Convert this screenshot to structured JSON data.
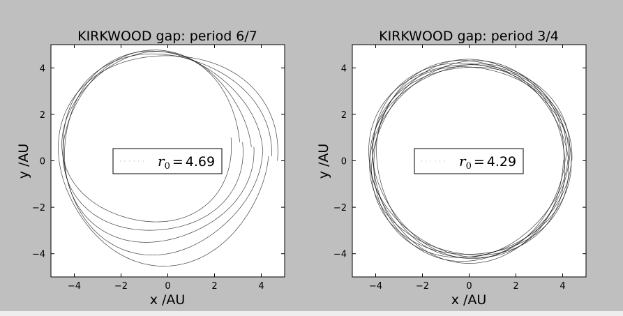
{
  "chart_data": [
    {
      "type": "line",
      "title": "KIRKWOOD gap: period 6/7",
      "xlabel": "x  /AU",
      "ylabel": "y  /AU",
      "xlim": [
        -5,
        5
      ],
      "ylim": [
        -5,
        5
      ],
      "xticks": [
        -4,
        -2,
        0,
        2,
        4
      ],
      "yticks": [
        -4,
        -2,
        0,
        2,
        4
      ],
      "grid": false,
      "legend_placement": "center",
      "legend": {
        "var": "r",
        "sub": "0",
        "equals": "=",
        "value": "4.69"
      },
      "series": [
        {
          "r0": 4.69,
          "center_x_start": 0.0,
          "center_x_end": -0.8,
          "center_y_start": 0.0,
          "center_y_end": 1.0,
          "radius_start": 4.69,
          "radius_end": 3.6,
          "revolutions": 5,
          "color": "#000000"
        }
      ]
    },
    {
      "type": "line",
      "title": "KIRKWOOD gap: period 3/4",
      "xlabel": "x  /AU",
      "ylabel": "y  /AU",
      "xlim": [
        -5,
        5
      ],
      "ylim": [
        -5,
        5
      ],
      "xticks": [
        -4,
        -2,
        0,
        2,
        4
      ],
      "yticks": [
        -4,
        -2,
        0,
        2,
        4
      ],
      "grid": false,
      "legend_placement": "center",
      "legend": {
        "var": "r",
        "sub": "0",
        "equals": "=",
        "value": "4.29"
      },
      "series": [
        {
          "r0": 4.29,
          "center_x_start": 0.0,
          "center_x_end": 0.05,
          "center_y_start": 0.0,
          "center_y_end": 0.05,
          "radius_start": 4.29,
          "radius_end": 4.08,
          "revolutions": 8,
          "color": "#000000"
        }
      ]
    }
  ],
  "colors": {
    "figure_background": "#bfbfbf",
    "axes_background": "#ffffff",
    "page_background": "#eeeeee"
  }
}
